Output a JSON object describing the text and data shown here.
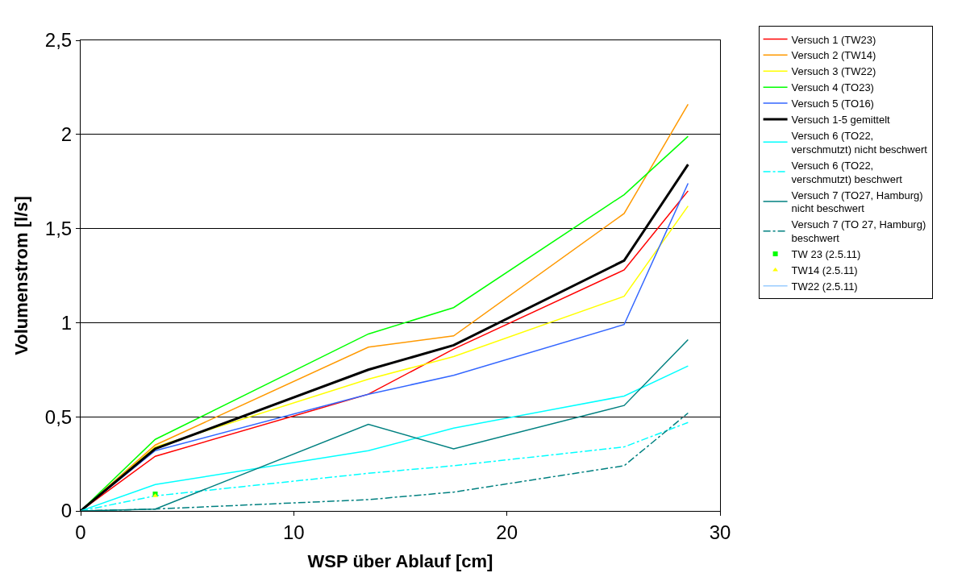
{
  "chart_data": {
    "type": "line",
    "xlabel": "WSP über Ablauf [cm]",
    "ylabel": "Volumenstrom [l/s]",
    "x": [
      0,
      3.5,
      13.5,
      17.5,
      25.5,
      28.5
    ],
    "xlim": [
      0,
      30
    ],
    "xticks": [
      0,
      10,
      20,
      30
    ],
    "ylim": [
      0,
      2.5
    ],
    "yticks": [
      {
        "value": 0,
        "label": "0"
      },
      {
        "value": 0.5,
        "label": "0,5"
      },
      {
        "value": 1,
        "label": "1"
      },
      {
        "value": 1.5,
        "label": "1,5"
      },
      {
        "value": 2,
        "label": "2"
      },
      {
        "value": 2.5,
        "label": "2,5"
      }
    ],
    "grid": "y",
    "legend": "right",
    "marker": "none",
    "series": [
      {
        "name": "Versuch 1 (TW23)",
        "color": "#ff0000",
        "values": [
          0,
          0.29,
          0.62,
          0.86,
          1.28,
          1.7
        ]
      },
      {
        "name": "Versuch 2 (TW14)",
        "color": "#ff9900",
        "values": [
          0,
          0.35,
          0.87,
          0.93,
          1.58,
          2.16
        ]
      },
      {
        "name": "Versuch 3 (TW22)",
        "color": "#ffff00",
        "values": [
          0,
          0.34,
          0.7,
          0.82,
          1.14,
          1.62
        ]
      },
      {
        "name": "Versuch 4 (TO23)",
        "color": "#00ff00",
        "values": [
          0,
          0.38,
          0.94,
          1.08,
          1.68,
          1.99
        ]
      },
      {
        "name": "Versuch 5 (TO16)",
        "color": "#3366ff",
        "values": [
          0,
          0.32,
          0.62,
          0.72,
          0.99,
          1.74
        ]
      },
      {
        "name": "Versuch 1-5 gemittelt",
        "color": "#000000",
        "values": [
          0,
          0.33,
          0.75,
          0.88,
          1.33,
          1.84
        ]
      },
      {
        "name": "Versuch 6 (TO22,\nverschmutzt) nicht beschwert",
        "color": "#00ffff",
        "values": [
          0,
          0.14,
          0.32,
          0.44,
          0.61,
          0.77
        ]
      },
      {
        "name": "Versuch 6 (TO22,\nverschmutzt) beschwert",
        "color": "#00ffff",
        "line_style": "dashdot",
        "values": [
          0,
          0.08,
          0.2,
          0.24,
          0.34,
          0.47
        ]
      },
      {
        "name": "Versuch 7 (TO27, Hamburg)\nnicht beschwert",
        "color": "#008080",
        "values": [
          0,
          0.01,
          0.46,
          0.33,
          0.56,
          0.91
        ]
      },
      {
        "name": "Versuch 7 (TO 27, Hamburg)\nbeschwert",
        "color": "#008080",
        "line_style": "dashdot",
        "values": [
          0,
          0.01,
          0.06,
          0.1,
          0.24,
          0.52
        ]
      },
      {
        "name": "TW 23 (2.5.11)",
        "type": "scatter",
        "marker": "square",
        "color": "#00ff00",
        "x": [
          3.5
        ],
        "values": [
          0.09
        ]
      },
      {
        "name": "TW14 (2.5.11)",
        "type": "scatter",
        "marker": "triangle",
        "color": "#ffff00",
        "x": [
          3.5
        ],
        "values": [
          0.08
        ]
      },
      {
        "name": "TW22 (2.5.11)",
        "color": "#99ccff",
        "values": [
          null,
          null,
          null,
          null,
          null,
          null
        ]
      }
    ]
  }
}
